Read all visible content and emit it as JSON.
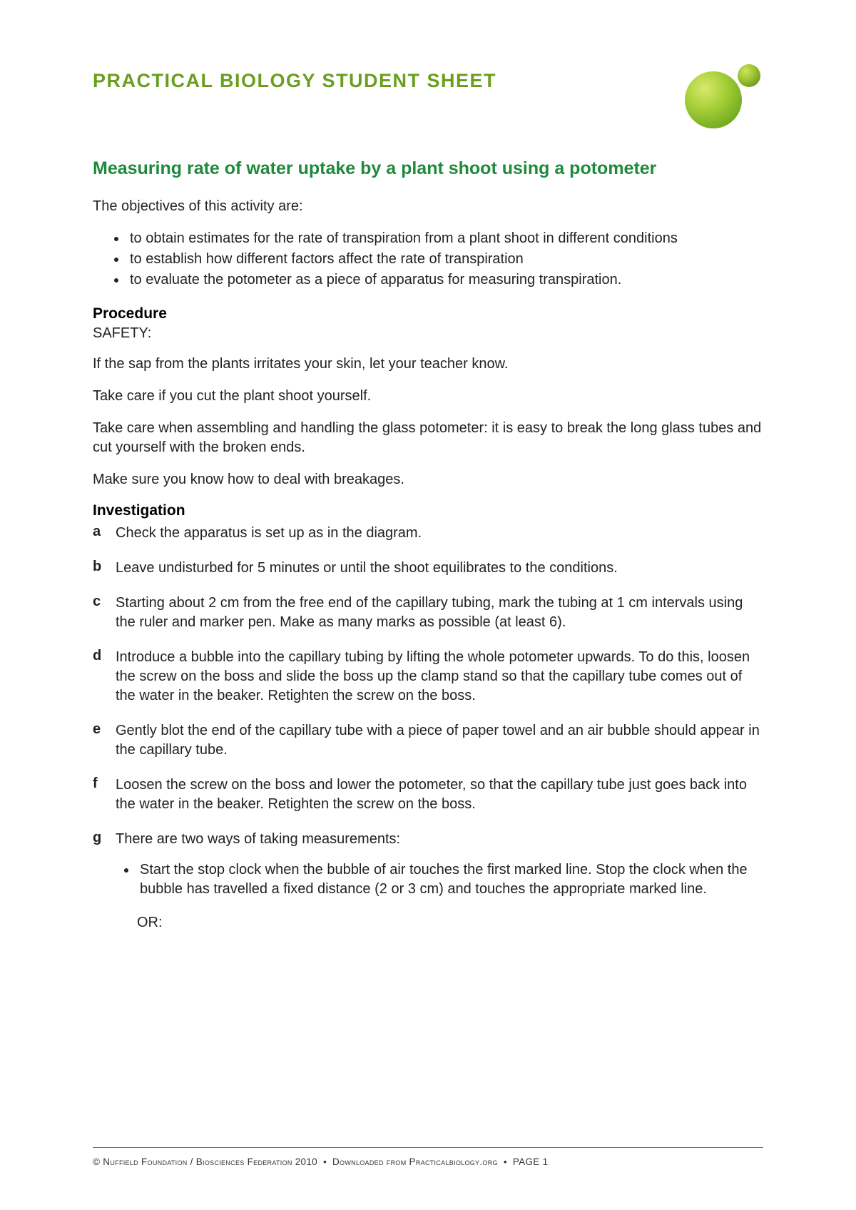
{
  "header": {
    "title": "PRACTICAL BIOLOGY STUDENT SHEET"
  },
  "document": {
    "title": "Measuring rate of water uptake by a plant shoot using a potometer",
    "objectives_intro": "The objectives of this activity are:",
    "objectives": [
      "to obtain estimates for the rate of transpiration from a plant shoot in different conditions",
      "to establish how different factors affect the rate of transpiration",
      "to evaluate the potometer as a piece of apparatus for measuring transpiration."
    ],
    "procedure": {
      "heading": "Procedure",
      "safety_label": "SAFETY:",
      "safety": [
        "If the sap from the plants irritates your skin, let your teacher know.",
        "Take care if you cut the plant shoot yourself.",
        "Take care when assembling and handling the glass potometer: it is easy to break the long glass tubes and cut yourself with the broken ends.",
        "Make sure you know how to deal with breakages."
      ]
    },
    "investigation": {
      "heading": "Investigation",
      "steps": [
        {
          "marker": "a",
          "text": "Check the apparatus is set up as in the diagram."
        },
        {
          "marker": "b",
          "text": "Leave undisturbed for 5 minutes or until the shoot equilibrates to the conditions."
        },
        {
          "marker": "c",
          "text": "Starting about 2 cm from the free end of the capillary tubing, mark the tubing at 1 cm intervals using the ruler and marker pen. Make as many marks as possible (at least 6)."
        },
        {
          "marker": "d",
          "text": "Introduce a bubble into the capillary tubing by lifting the whole potometer upwards. To do this, loosen the screw on the boss and slide the boss up the clamp stand so that the capillary tube comes out of the water in the beaker. Retighten the screw on the boss."
        },
        {
          "marker": "e",
          "text": "Gently blot the end of the capillary tube with a piece of paper towel and an air bubble should appear in the capillary tube."
        },
        {
          "marker": "f",
          "text": "Loosen the screw on the boss and lower the potometer, so that the capillary tube just goes back into the water in the beaker. Retighten the screw on the boss."
        },
        {
          "marker": "g",
          "text": "There are two ways of taking measurements:",
          "sub": [
            "Start the stop clock when the bubble of air touches the first marked line. Stop the clock when the bubble has travelled a fixed distance (2 or 3 cm) and touches the appropriate marked line."
          ],
          "or": "OR:"
        }
      ]
    }
  },
  "footer": {
    "copyright": "© Nuffield Foundation / Biosciences Federation 2010",
    "download": "Downloaded from  Practicalbiology.org",
    "page": "PAGE 1"
  },
  "colors": {
    "brand_green": "#6b9e1f",
    "title_green": "#1e8a3b",
    "text": "#222222",
    "background": "#ffffff"
  }
}
